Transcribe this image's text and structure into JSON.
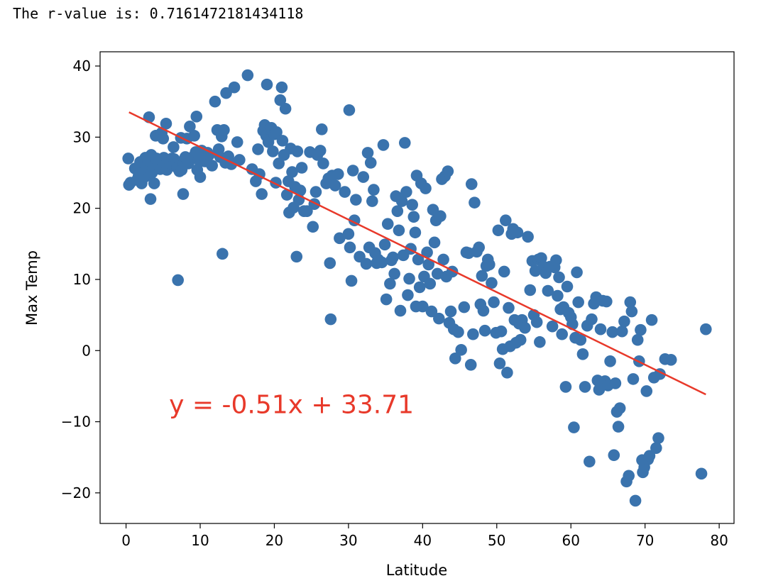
{
  "output": {
    "rvalue_label": "The r-value is: ",
    "rvalue": "0.7161472181434118"
  },
  "colors": {
    "points": "#3a73ad",
    "line": "#e8392a",
    "annotation": "#e8392a",
    "axis": "#000000"
  },
  "chart_data": {
    "type": "scatter",
    "title": "",
    "xlabel": "Latitude",
    "ylabel": "Max Temp",
    "xlim": [
      -3.5,
      82
    ],
    "ylim": [
      -24.3,
      42
    ],
    "xticks": [
      0,
      10,
      20,
      30,
      40,
      50,
      60,
      70,
      80
    ],
    "yticks": [
      -20,
      -10,
      0,
      10,
      20,
      30,
      40
    ],
    "ytick_labels": [
      "−20",
      "−10",
      "0",
      "10",
      "20",
      "30",
      "40"
    ],
    "regression": {
      "slope": -0.51,
      "intercept": 33.71,
      "x_start": 0.4,
      "x_end": 78.2
    },
    "annotation": {
      "text": "y = -0.51x + 33.71",
      "x": 5.8,
      "y": -8.8
    },
    "points": [
      [
        0.3,
        27
      ],
      [
        0.4,
        23.3
      ],
      [
        0.6,
        23.6
      ],
      [
        1.2,
        25.6
      ],
      [
        1.5,
        24
      ],
      [
        1.7,
        24.6
      ],
      [
        1.9,
        26.5
      ],
      [
        2.1,
        23.5
      ],
      [
        2.3,
        25
      ],
      [
        2.5,
        24.4
      ],
      [
        2.6,
        27.1
      ],
      [
        2.8,
        25.6
      ],
      [
        3,
        26.7
      ],
      [
        3.1,
        32.8
      ],
      [
        3.2,
        24.7
      ],
      [
        3.3,
        21.3
      ],
      [
        3.4,
        27.5
      ],
      [
        3.5,
        25
      ],
      [
        3.7,
        25.9
      ],
      [
        3.8,
        23.5
      ],
      [
        4,
        30.2
      ],
      [
        4.1,
        27
      ],
      [
        4.3,
        26.4
      ],
      [
        4.5,
        26.8
      ],
      [
        4.6,
        25.5
      ],
      [
        4.8,
        30.6
      ],
      [
        5,
        29.8
      ],
      [
        5.1,
        27.1
      ],
      [
        5.3,
        26
      ],
      [
        5.4,
        31.9
      ],
      [
        5.5,
        25.4
      ],
      [
        5.6,
        26.8
      ],
      [
        5.8,
        26.7
      ],
      [
        6,
        26.3
      ],
      [
        6.2,
        27
      ],
      [
        6.4,
        28.6
      ],
      [
        6.5,
        26.9
      ],
      [
        6.7,
        26.2
      ],
      [
        6.9,
        25.7
      ],
      [
        7,
        9.9
      ],
      [
        7.2,
        25.2
      ],
      [
        7.4,
        29.9
      ],
      [
        7.5,
        25.4
      ],
      [
        7.7,
        22
      ],
      [
        7.8,
        26.3
      ],
      [
        8,
        27.2
      ],
      [
        8.2,
        29.8
      ],
      [
        8.4,
        26.3
      ],
      [
        8.6,
        31.5
      ],
      [
        8.8,
        26.9
      ],
      [
        9,
        27.2
      ],
      [
        9.2,
        30.2
      ],
      [
        9.4,
        27.9
      ],
      [
        9.5,
        32.9
      ],
      [
        9.6,
        25.4
      ],
      [
        9.8,
        26.8
      ],
      [
        10,
        24.4
      ],
      [
        10.2,
        28.1
      ],
      [
        10.4,
        27.6
      ],
      [
        10.6,
        26.6
      ],
      [
        10.8,
        26.6
      ],
      [
        11,
        27.8
      ],
      [
        11.2,
        27.5
      ],
      [
        11.6,
        26
      ],
      [
        12,
        35
      ],
      [
        12.3,
        31
      ],
      [
        12.5,
        28.3
      ],
      [
        12.7,
        27.2
      ],
      [
        12.9,
        30.1
      ],
      [
        13,
        13.6
      ],
      [
        13.2,
        31
      ],
      [
        13.4,
        26.4
      ],
      [
        13.5,
        36.2
      ],
      [
        13.8,
        27.3
      ],
      [
        14,
        26.5
      ],
      [
        14.2,
        26.2
      ],
      [
        14.6,
        37
      ],
      [
        15,
        29.3
      ],
      [
        15.3,
        26.8
      ],
      [
        16.4,
        38.7
      ],
      [
        17,
        25.5
      ],
      [
        17.5,
        23.8
      ],
      [
        17.8,
        28.3
      ],
      [
        18,
        24.8
      ],
      [
        18.3,
        22
      ],
      [
        18.5,
        30.9
      ],
      [
        18.7,
        31.7
      ],
      [
        18.9,
        30.2
      ],
      [
        19,
        37.4
      ],
      [
        19.2,
        29.3
      ],
      [
        19.4,
        31.1
      ],
      [
        19.6,
        31.3
      ],
      [
        19.8,
        28
      ],
      [
        20,
        30.4
      ],
      [
        20.2,
        23.6
      ],
      [
        20.3,
        30.7
      ],
      [
        20.6,
        26.3
      ],
      [
        20.8,
        35.2
      ],
      [
        21,
        37
      ],
      [
        21.1,
        29.5
      ],
      [
        21.3,
        27.5
      ],
      [
        21.5,
        34
      ],
      [
        21.7,
        21.9
      ],
      [
        21.9,
        23.8
      ],
      [
        22,
        19.4
      ],
      [
        22.2,
        28.4
      ],
      [
        22.4,
        25.1
      ],
      [
        22.6,
        20.1
      ],
      [
        22.8,
        23
      ],
      [
        23,
        13.2
      ],
      [
        23.1,
        28
      ],
      [
        23.3,
        21.2
      ],
      [
        23.5,
        22.5
      ],
      [
        23.7,
        25.7
      ],
      [
        24,
        19.6
      ],
      [
        24.4,
        19.6
      ],
      [
        24.8,
        27.9
      ],
      [
        25.2,
        17.4
      ],
      [
        25.4,
        20.6
      ],
      [
        25.6,
        22.3
      ],
      [
        25.8,
        27.5
      ],
      [
        26.2,
        28.1
      ],
      [
        26.4,
        31.1
      ],
      [
        26.6,
        26.3
      ],
      [
        27,
        23.5
      ],
      [
        27.3,
        24.2
      ],
      [
        27.5,
        12.3
      ],
      [
        27.6,
        4.4
      ],
      [
        27.8,
        24.6
      ],
      [
        28.2,
        23.2
      ],
      [
        28.6,
        24.8
      ],
      [
        28.8,
        15.8
      ],
      [
        29.5,
        22.3
      ],
      [
        30,
        16.4
      ],
      [
        30.1,
        33.8
      ],
      [
        30.2,
        14.5
      ],
      [
        30.4,
        9.8
      ],
      [
        30.6,
        25.3
      ],
      [
        30.8,
        18.3
      ],
      [
        31,
        21.2
      ],
      [
        31.5,
        13.2
      ],
      [
        32,
        24.4
      ],
      [
        32.4,
        12.2
      ],
      [
        32.6,
        27.8
      ],
      [
        32.8,
        14.5
      ],
      [
        33,
        26.4
      ],
      [
        33.2,
        21
      ],
      [
        33.4,
        22.6
      ],
      [
        33.6,
        13.7
      ],
      [
        33.8,
        12.3
      ],
      [
        34,
        12.8
      ],
      [
        34.5,
        12.4
      ],
      [
        34.7,
        28.9
      ],
      [
        34.9,
        14.9
      ],
      [
        35.1,
        7.2
      ],
      [
        35.3,
        17.8
      ],
      [
        35.6,
        9.4
      ],
      [
        35.8,
        12.7
      ],
      [
        36,
        13.1
      ],
      [
        36.2,
        10.8
      ],
      [
        36.4,
        21.7
      ],
      [
        36.6,
        19.6
      ],
      [
        36.8,
        16.9
      ],
      [
        37,
        5.6
      ],
      [
        37.2,
        21
      ],
      [
        37.4,
        13.4
      ],
      [
        37.6,
        29.2
      ],
      [
        37.8,
        22.3
      ],
      [
        38,
        7.8
      ],
      [
        38.2,
        10.1
      ],
      [
        38.4,
        14.3
      ],
      [
        38.6,
        20.5
      ],
      [
        38.8,
        18.8
      ],
      [
        39,
        16.6
      ],
      [
        39.1,
        6.2
      ],
      [
        39.2,
        24.6
      ],
      [
        39.4,
        12.8
      ],
      [
        39.6,
        8.9
      ],
      [
        39.8,
        23.5
      ],
      [
        40,
        6.2
      ],
      [
        40.2,
        10.4
      ],
      [
        40.4,
        22.8
      ],
      [
        40.6,
        13.8
      ],
      [
        40.8,
        12.1
      ],
      [
        41,
        9.4
      ],
      [
        41.2,
        5.5
      ],
      [
        41.4,
        19.8
      ],
      [
        41.6,
        15.2
      ],
      [
        41.8,
        18.3
      ],
      [
        42,
        10.8
      ],
      [
        42.2,
        4.5
      ],
      [
        42.4,
        18.9
      ],
      [
        42.6,
        24.1
      ],
      [
        42.8,
        12.8
      ],
      [
        43,
        24.5
      ],
      [
        43.2,
        10.4
      ],
      [
        43.4,
        25.2
      ],
      [
        43.6,
        3.9
      ],
      [
        43.8,
        5.5
      ],
      [
        44,
        11.1
      ],
      [
        44.2,
        3
      ],
      [
        44.4,
        -1.1
      ],
      [
        44.8,
        2.6
      ],
      [
        45.2,
        0.1
      ],
      [
        45.6,
        6.1
      ],
      [
        45.9,
        13.8
      ],
      [
        46.2,
        13.7
      ],
      [
        46.5,
        -2
      ],
      [
        46.6,
        23.4
      ],
      [
        46.8,
        2.3
      ],
      [
        47,
        20.8
      ],
      [
        47.3,
        13.9
      ],
      [
        47.6,
        14.5
      ],
      [
        47.8,
        6.5
      ],
      [
        48,
        10.5
      ],
      [
        48.2,
        5.6
      ],
      [
        48.4,
        2.8
      ],
      [
        48.6,
        11.9
      ],
      [
        48.8,
        12.8
      ],
      [
        49,
        12.1
      ],
      [
        49.3,
        9.5
      ],
      [
        49.6,
        6.8
      ],
      [
        49.9,
        2.5
      ],
      [
        50.2,
        16.9
      ],
      [
        50.4,
        -1.8
      ],
      [
        50.6,
        2.7
      ],
      [
        50.8,
        0.2
      ],
      [
        51,
        11.1
      ],
      [
        51.2,
        18.3
      ],
      [
        51.4,
        -3.1
      ],
      [
        51.6,
        6
      ],
      [
        51.8,
        0.6
      ],
      [
        52,
        16.4
      ],
      [
        52.2,
        17.1
      ],
      [
        52.4,
        4.3
      ],
      [
        52.6,
        1.1
      ],
      [
        52.8,
        16.6
      ],
      [
        53,
        3.8
      ],
      [
        53.2,
        1.5
      ],
      [
        53.4,
        4.3
      ],
      [
        53.8,
        3.2
      ],
      [
        54.2,
        16
      ],
      [
        54.5,
        8.5
      ],
      [
        54.8,
        12.6
      ],
      [
        55,
        5
      ],
      [
        55.2,
        11.2
      ],
      [
        55.4,
        4
      ],
      [
        55.6,
        12.8
      ],
      [
        55.8,
        1.2
      ],
      [
        56,
        13
      ],
      [
        56.3,
        11.8
      ],
      [
        56.6,
        10.9
      ],
      [
        56.9,
        8.4
      ],
      [
        57.2,
        11.8
      ],
      [
        57.5,
        3.4
      ],
      [
        57.8,
        11.7
      ],
      [
        58,
        12.7
      ],
      [
        58.2,
        7.7
      ],
      [
        58.4,
        10.3
      ],
      [
        58.6,
        5.8
      ],
      [
        58.8,
        2.3
      ],
      [
        59,
        6.1
      ],
      [
        59.3,
        -5.1
      ],
      [
        59.5,
        9
      ],
      [
        59.7,
        5.3
      ],
      [
        60,
        4.7
      ],
      [
        60.2,
        3.7
      ],
      [
        60.4,
        -10.8
      ],
      [
        60.6,
        1.8
      ],
      [
        60.8,
        11
      ],
      [
        61,
        6.8
      ],
      [
        61.3,
        1.5
      ],
      [
        61.6,
        -0.5
      ],
      [
        61.9,
        -5.1
      ],
      [
        62.2,
        3.5
      ],
      [
        62.5,
        -15.6
      ],
      [
        62.8,
        4.4
      ],
      [
        63.1,
        6.6
      ],
      [
        63.4,
        7.5
      ],
      [
        63.6,
        -4.2
      ],
      [
        63.8,
        -5.5
      ],
      [
        64,
        3
      ],
      [
        64.3,
        7
      ],
      [
        64.6,
        -4.3
      ],
      [
        64.8,
        6.9
      ],
      [
        65,
        -4.9
      ],
      [
        65.3,
        -1.5
      ],
      [
        65.6,
        2.6
      ],
      [
        65.8,
        -14.7
      ],
      [
        66,
        -4.6
      ],
      [
        66.2,
        -8.6
      ],
      [
        66.4,
        -10.7
      ],
      [
        66.6,
        -8.1
      ],
      [
        66.9,
        2.7
      ],
      [
        67.2,
        4.1
      ],
      [
        67.5,
        -18.4
      ],
      [
        67.8,
        -17.6
      ],
      [
        68,
        6.8
      ],
      [
        68.2,
        5.5
      ],
      [
        68.4,
        -4
      ],
      [
        68.7,
        -21.1
      ],
      [
        69,
        1.5
      ],
      [
        69.2,
        -1.5
      ],
      [
        69.4,
        2.9
      ],
      [
        69.6,
        -15.4
      ],
      [
        69.7,
        -17.1
      ],
      [
        69.9,
        -16.4
      ],
      [
        70.2,
        -5.7
      ],
      [
        70.4,
        -15.3
      ],
      [
        70.6,
        -14.8
      ],
      [
        70.9,
        4.3
      ],
      [
        71.2,
        -3.8
      ],
      [
        71.5,
        -13.7
      ],
      [
        71.8,
        -12.3
      ],
      [
        72,
        -3.3
      ],
      [
        72.7,
        -1.2
      ],
      [
        73.5,
        -1.3
      ],
      [
        77.6,
        -17.3
      ],
      [
        78.2,
        3
      ]
    ]
  }
}
